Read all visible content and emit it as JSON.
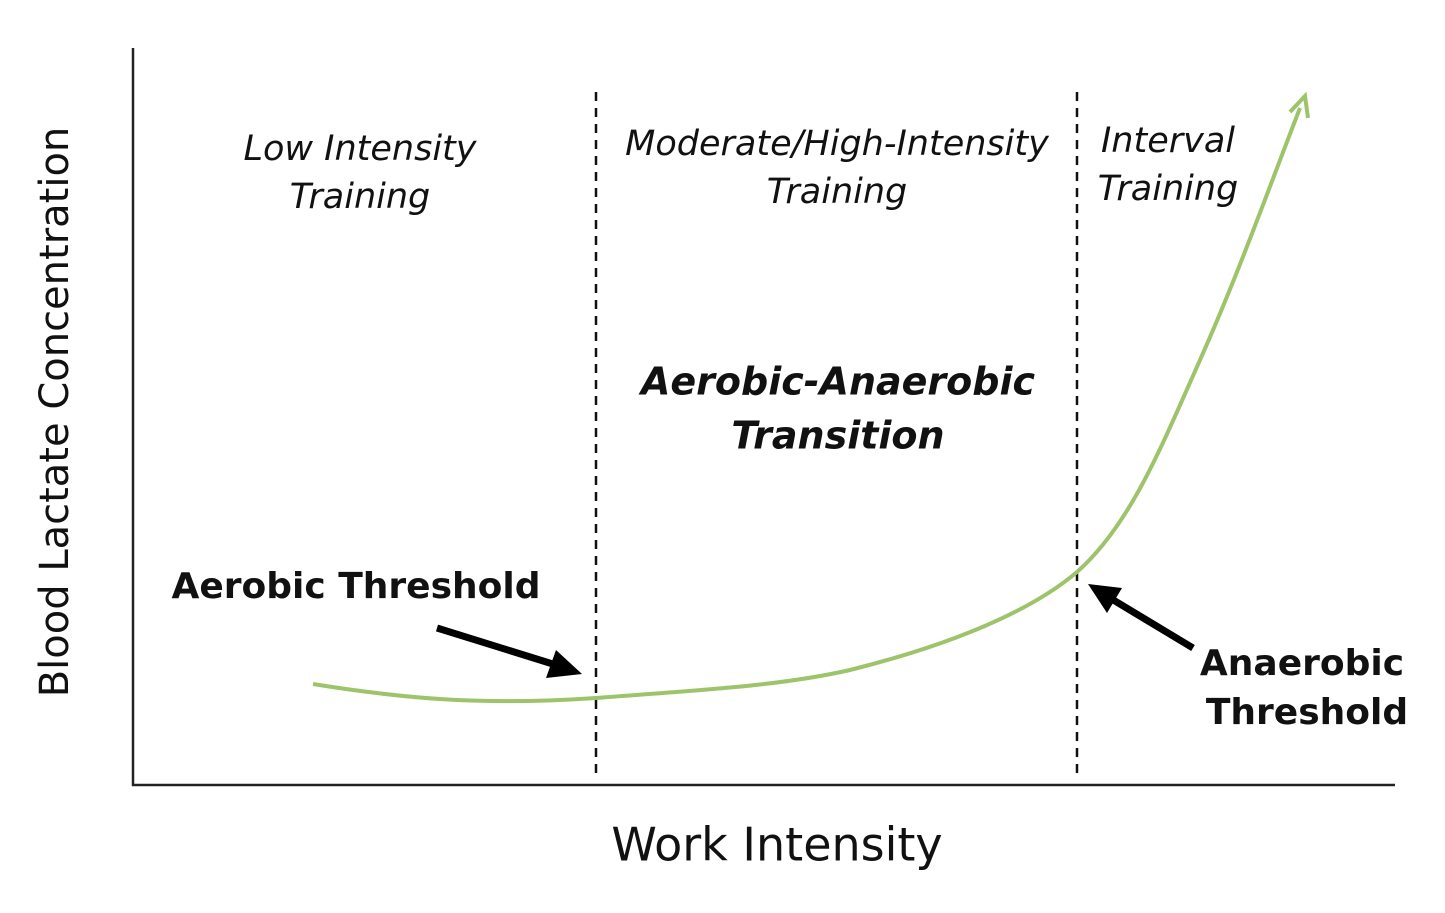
{
  "axes": {
    "y_label": "Blood Lactate Concentration",
    "x_label": "Work Intensity"
  },
  "zones": [
    {
      "lines": [
        "Low Intensity",
        "Training"
      ]
    },
    {
      "lines": [
        "Moderate/High-Intensity",
        "Training"
      ]
    },
    {
      "lines": [
        "Interval",
        "Training"
      ]
    }
  ],
  "center_label": {
    "lines": [
      "Aerobic-Anaerobic",
      "Transition"
    ]
  },
  "annotations": {
    "aerobic_threshold": "Aerobic Threshold",
    "anaerobic_threshold": {
      "lines": [
        "Anaerobic",
        "Threshold"
      ]
    }
  }
}
